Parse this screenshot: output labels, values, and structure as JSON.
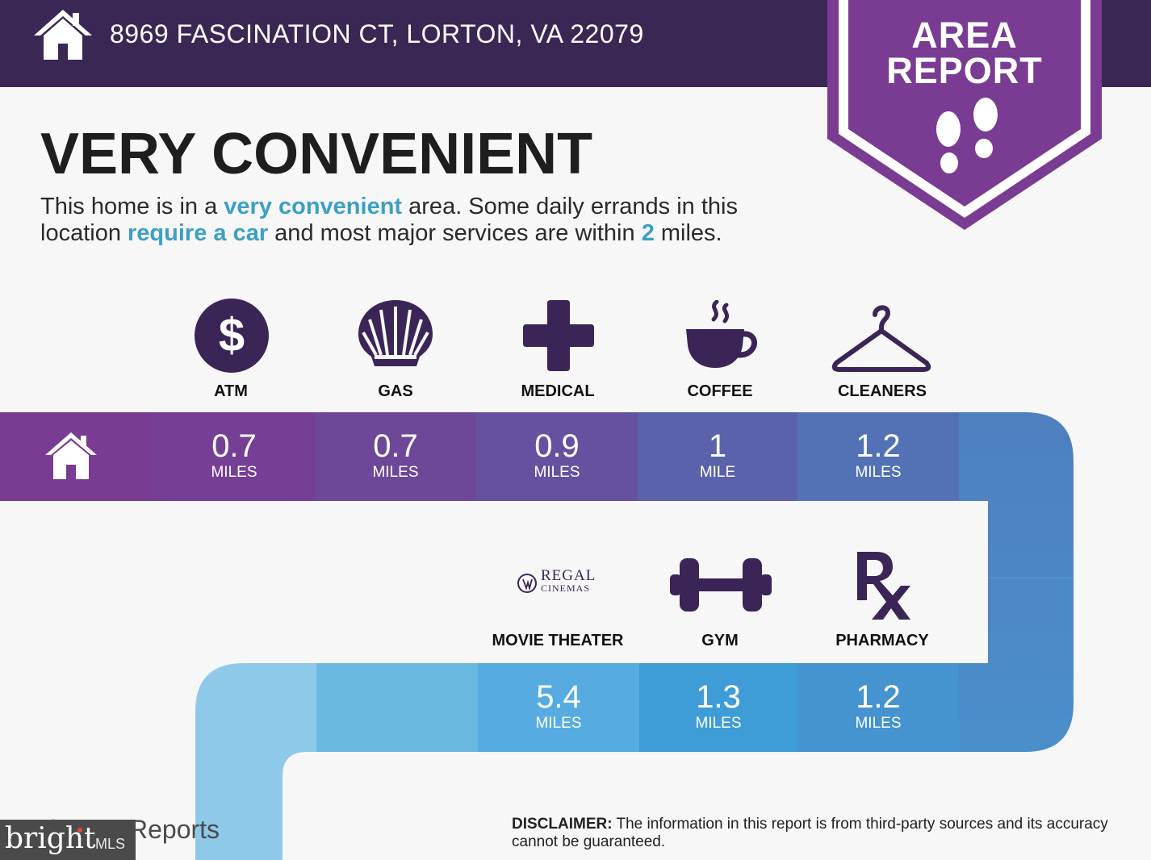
{
  "header": {
    "address": "8969 FASCINATION CT, LORTON, VA 22079"
  },
  "badge": {
    "line1": "AREA",
    "line2": "REPORT"
  },
  "headline": "VERY CONVENIENT",
  "description": {
    "p1": "This home is in a ",
    "h1": "very convenient",
    "p2": " area. Some daily errands in this location ",
    "h2": "require a car",
    "p3": " and most major services are within ",
    "h3": "2",
    "p4": " miles."
  },
  "amenities_row1": [
    {
      "label": "ATM",
      "icon": "dollar-icon",
      "value": "0.7",
      "unit": "MILES"
    },
    {
      "label": "GAS",
      "icon": "shell-icon",
      "value": "0.7",
      "unit": "MILES"
    },
    {
      "label": "MEDICAL",
      "icon": "medical-cross-icon",
      "value": "0.9",
      "unit": "MILES"
    },
    {
      "label": "COFFEE",
      "icon": "coffee-cup-icon",
      "value": "1",
      "unit": "MILE"
    },
    {
      "label": "CLEANERS",
      "icon": "hanger-icon",
      "value": "1.2",
      "unit": "MILES"
    }
  ],
  "amenities_row2": [
    {
      "label": "MOVIE THEATER",
      "icon": "regal-cinemas-logo",
      "logo_text": "REGAL",
      "logo_sub": "CINEMAS",
      "value": "5.4",
      "unit": "MILES"
    },
    {
      "label": "GYM",
      "icon": "dumbbell-icon",
      "value": "1.3",
      "unit": "MILES"
    },
    {
      "label": "PHARMACY",
      "icon": "rx-icon",
      "value": "1.2",
      "unit": "MILES"
    }
  ],
  "disclaimer": {
    "label": "DISCLAIMER:",
    "text": " The information in this report is from third-party sources and its accuracy cannot be guaranteed."
  },
  "footer": {
    "reports_text": "Reports",
    "watermark": "bright",
    "watermark_sub": "MLS"
  },
  "colors": {
    "header_bg": "#3a2754",
    "badge": "#7a3b92",
    "icon_purple": "#3b2557",
    "highlight_blue": "#3c9fc6"
  }
}
